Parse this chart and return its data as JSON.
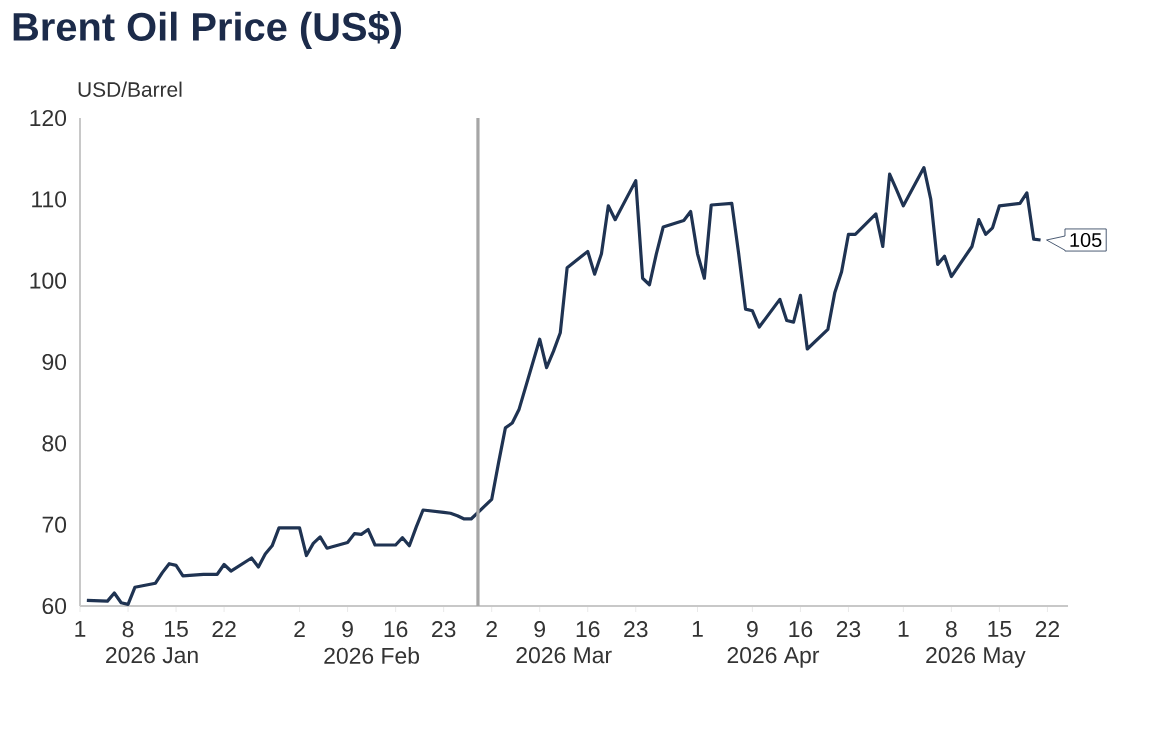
{
  "chart_data": {
    "type": "line",
    "title": "Brent Oil Price (US$)",
    "ylabel": "USD/Barrel",
    "x": [
      "2026-01-02",
      "2026-01-05",
      "2026-01-06",
      "2026-01-07",
      "2026-01-08",
      "2026-01-09",
      "2026-01-12",
      "2026-01-13",
      "2026-01-14",
      "2026-01-15",
      "2026-01-16",
      "2026-01-19",
      "2026-01-20",
      "2026-01-21",
      "2026-01-22",
      "2026-01-23",
      "2026-01-26",
      "2026-01-27",
      "2026-01-28",
      "2026-01-29",
      "2026-01-30",
      "2026-02-02",
      "2026-02-03",
      "2026-02-04",
      "2026-02-05",
      "2026-02-06",
      "2026-02-09",
      "2026-02-10",
      "2026-02-11",
      "2026-02-12",
      "2026-02-13",
      "2026-02-16",
      "2026-02-17",
      "2026-02-18",
      "2026-02-19",
      "2026-02-20",
      "2026-02-23",
      "2026-02-24",
      "2026-02-25",
      "2026-02-26",
      "2026-02-27",
      "2026-03-02",
      "2026-03-03",
      "2026-03-04",
      "2026-03-05",
      "2026-03-06",
      "2026-03-09",
      "2026-03-10",
      "2026-03-11",
      "2026-03-12",
      "2026-03-13",
      "2026-03-16",
      "2026-03-17",
      "2026-03-18",
      "2026-03-19",
      "2026-03-20",
      "2026-03-23",
      "2026-03-24",
      "2026-03-25",
      "2026-03-26",
      "2026-03-27",
      "2026-03-30",
      "2026-03-31",
      "2026-04-01",
      "2026-04-02",
      "2026-04-03",
      "2026-04-06",
      "2026-04-07",
      "2026-04-08",
      "2026-04-09",
      "2026-04-10",
      "2026-04-13",
      "2026-04-14",
      "2026-04-15",
      "2026-04-16",
      "2026-04-17",
      "2026-04-20",
      "2026-04-21",
      "2026-04-22",
      "2026-04-23",
      "2026-04-24",
      "2026-04-27",
      "2026-04-28",
      "2026-04-29",
      "2026-04-30",
      "2026-05-01",
      "2026-05-04",
      "2026-05-05",
      "2026-05-06",
      "2026-05-07",
      "2026-05-08",
      "2026-05-11",
      "2026-05-12",
      "2026-05-13",
      "2026-05-14",
      "2026-05-15",
      "2026-05-18",
      "2026-05-19",
      "2026-05-20",
      "2026-05-21"
    ],
    "series": [
      {
        "color": "#1f3352",
        "values": [
          60.7,
          60.6,
          61.6,
          60.4,
          60.2,
          62.3,
          62.8,
          64.1,
          65.2,
          65.0,
          63.7,
          63.9,
          63.9,
          63.9,
          65.1,
          64.3,
          65.9,
          64.8,
          66.4,
          67.4,
          69.6,
          69.6,
          66.2,
          67.7,
          68.5,
          67.1,
          67.8,
          68.9,
          68.8,
          69.4,
          67.5,
          67.5,
          68.4,
          67.4,
          69.7,
          71.8,
          71.5,
          71.4,
          71.1,
          70.7,
          70.7,
          73.1,
          77.6,
          81.9,
          82.5,
          84.2,
          92.8,
          89.3,
          91.3,
          93.6,
          101.6,
          103.6,
          100.8,
          103.3,
          109.2,
          107.5,
          112.3,
          100.3,
          99.5,
          103.3,
          106.6,
          107.4,
          108.5,
          103.3,
          100.3,
          109.3,
          109.5,
          103.3,
          96.5,
          96.3,
          94.3,
          97.7,
          95.1,
          94.9,
          98.2,
          91.6,
          94.0,
          98.5,
          101.1,
          105.7,
          105.7,
          108.2,
          104.2,
          113.1,
          111.2,
          109.2,
          113.9,
          110.0,
          102.0,
          103.0,
          100.5,
          104.2,
          107.5,
          105.7,
          106.5,
          109.2,
          109.5,
          110.8,
          105.1,
          105.0
        ],
        "value_labels": [
          null,
          null,
          null,
          null,
          null,
          null,
          null,
          null,
          null,
          null,
          null,
          null,
          null,
          null,
          null,
          null,
          null,
          null,
          null,
          null,
          null,
          null,
          null,
          null,
          null,
          null,
          null,
          null,
          null,
          null,
          null,
          null,
          null,
          null,
          null,
          null,
          null,
          null,
          null,
          null,
          null,
          null,
          null,
          null,
          null,
          null,
          null,
          null,
          null,
          null,
          null,
          null,
          null,
          null,
          null,
          null,
          null,
          null,
          null,
          null,
          null,
          null,
          null,
          null,
          null,
          null,
          null,
          null,
          null,
          null,
          null,
          null,
          null,
          null,
          null,
          null,
          null,
          null,
          null,
          null,
          null,
          null,
          null,
          null,
          null,
          null,
          null,
          null,
          null,
          null,
          null,
          null,
          null,
          null,
          null,
          null,
          null,
          null,
          null,
          "105"
        ]
      }
    ],
    "xlim": [
      "2026-01-01",
      "2026-05-25"
    ],
    "xticks": [
      {
        "value": "2026-01-01",
        "label": "1"
      },
      {
        "value": "2026-01-08",
        "label": "8"
      },
      {
        "value": "2026-01-15",
        "label": "15"
      },
      {
        "value": "2026-01-22",
        "label": "22"
      },
      {
        "value": "2026-02-02",
        "label": "2"
      },
      {
        "value": "2026-02-09",
        "label": "9"
      },
      {
        "value": "2026-02-16",
        "label": "16"
      },
      {
        "value": "2026-02-23",
        "label": "23"
      },
      {
        "value": "2026-03-02",
        "label": "2"
      },
      {
        "value": "2026-03-09",
        "label": "9"
      },
      {
        "value": "2026-03-16",
        "label": "16"
      },
      {
        "value": "2026-03-23",
        "label": "23"
      },
      {
        "value": "2026-04-01",
        "label": "1"
      },
      {
        "value": "2026-04-09",
        "label": "9"
      },
      {
        "value": "2026-04-16",
        "label": "16"
      },
      {
        "value": "2026-04-23",
        "label": "23"
      },
      {
        "value": "2026-05-01",
        "label": "1"
      },
      {
        "value": "2026-05-08",
        "label": "8"
      },
      {
        "value": "2026-05-15",
        "label": "15"
      },
      {
        "value": "2026-05-22",
        "label": "22"
      }
    ],
    "ylim": [
      60,
      120
    ],
    "yticks": [
      60,
      70,
      80,
      90,
      100,
      110,
      120
    ],
    "ref_lines": [
      {
        "axis": "x",
        "value": "2026-02-28",
        "color": "#a6a6a6"
      }
    ],
    "annotations": [
      "2026 Jan",
      "2026 Feb",
      "2026 Mar",
      "2026 Apr",
      "2026 May"
    ],
    "grid": false
  }
}
